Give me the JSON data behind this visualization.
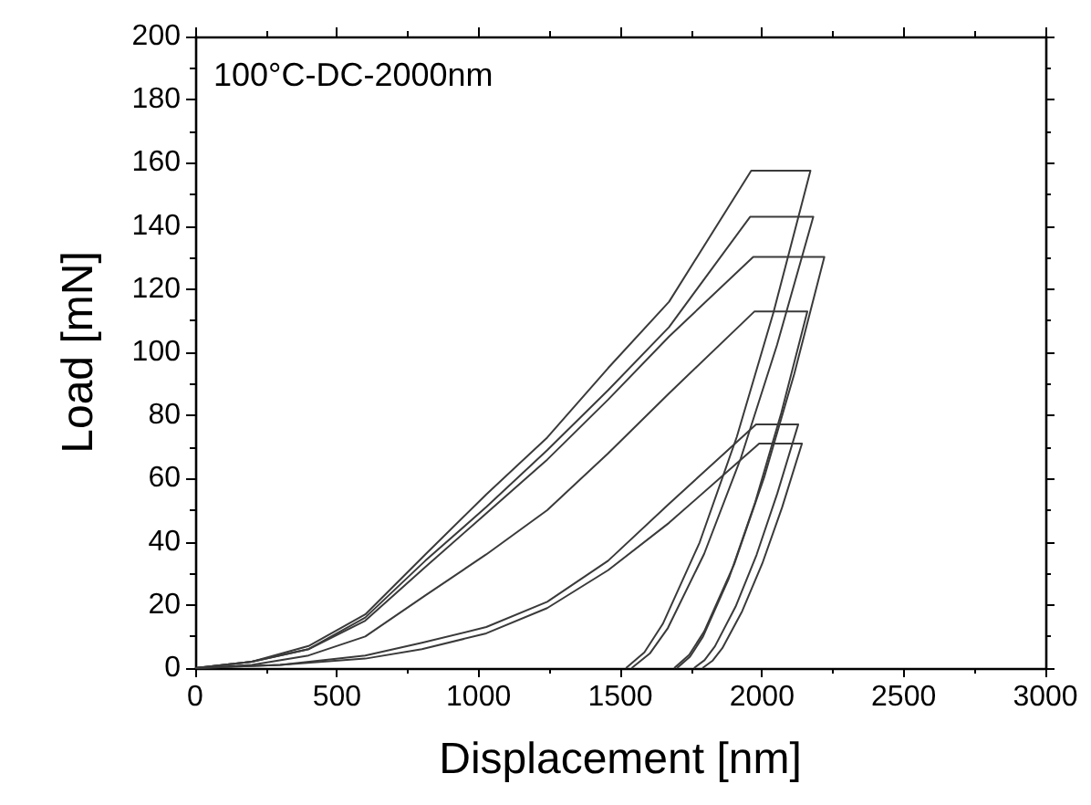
{
  "chart_data": {
    "type": "line",
    "xlabel": "Displacement [nm]",
    "ylabel": "Load [mN]",
    "annotations": [
      "100°C-DC-2000nm"
    ],
    "xlim": [
      0,
      3000
    ],
    "xticks": [
      0,
      500,
      1000,
      1500,
      2000,
      2500,
      3000
    ],
    "ylim": [
      0,
      200
    ],
    "yticks": [
      0,
      20,
      40,
      60,
      80,
      100,
      120,
      140,
      160,
      180,
      200
    ],
    "marker": "none",
    "line_style": "solid",
    "series": [
      {
        "color": "#3a3a3a",
        "x": [
          0,
          200,
          400,
          600,
          812,
          1027,
          1242,
          1457,
          1672,
          1962,
          2171,
          2041,
          1911,
          1780,
          1650,
          1585,
          1520
        ],
        "values": [
          0,
          2,
          7,
          17,
          36,
          55,
          73,
          95,
          116,
          157.5,
          157.5,
          112.8,
          73.2,
          39.8,
          14,
          5,
          0
        ]
      },
      {
        "color": "#3a3a3a",
        "x": [
          0,
          200,
          400,
          600,
          812,
          1027,
          1242,
          1457,
          1672,
          1958,
          2181,
          2053,
          1925,
          1796,
          1668,
          1604,
          1540
        ],
        "values": [
          0,
          2,
          6,
          16,
          34,
          51,
          69,
          88,
          108,
          142.9,
          142.9,
          102.3,
          66.4,
          36.2,
          12.7,
          4.6,
          0
        ]
      },
      {
        "color": "#3a3a3a",
        "x": [
          0,
          200,
          400,
          600,
          812,
          1027,
          1242,
          1457,
          1672,
          1969,
          2220,
          2114,
          2008,
          1902,
          1796,
          1743,
          1690
        ],
        "values": [
          0,
          2,
          6,
          15,
          32,
          49,
          66,
          85,
          105,
          130.2,
          130.2,
          93.2,
          60.5,
          32.9,
          11.6,
          4.2,
          0
        ]
      },
      {
        "color": "#3a3a3a",
        "x": [
          0,
          200,
          400,
          600,
          812,
          1027,
          1242,
          1457,
          1672,
          1973,
          2160,
          2068,
          1976,
          1884,
          1792,
          1746,
          1700
        ],
        "values": [
          0,
          1,
          4,
          10,
          23,
          36,
          50,
          68,
          87,
          112.9,
          112.9,
          80.8,
          52.5,
          28.6,
          10,
          3.6,
          0
        ]
      },
      {
        "color": "#3a3a3a",
        "x": [
          0,
          300,
          600,
          800,
          1027,
          1242,
          1457,
          1672,
          1979,
          2128,
          2054,
          1981,
          1907,
          1834,
          1797,
          1760
        ],
        "values": [
          0,
          1,
          4,
          8,
          13,
          21,
          34,
          52,
          77.2,
          77.2,
          55.3,
          35.9,
          19.5,
          6.9,
          2.5,
          0
        ]
      },
      {
        "color": "#3a3a3a",
        "x": [
          0,
          300,
          600,
          800,
          1027,
          1242,
          1457,
          1672,
          1990,
          2141,
          2071,
          2001,
          1930,
          1860,
          1825,
          1790
        ],
        "values": [
          0,
          1,
          3,
          6,
          11,
          19,
          31,
          46,
          71.1,
          71.1,
          50.9,
          33.1,
          18,
          6.3,
          2.3,
          0
        ]
      }
    ]
  }
}
